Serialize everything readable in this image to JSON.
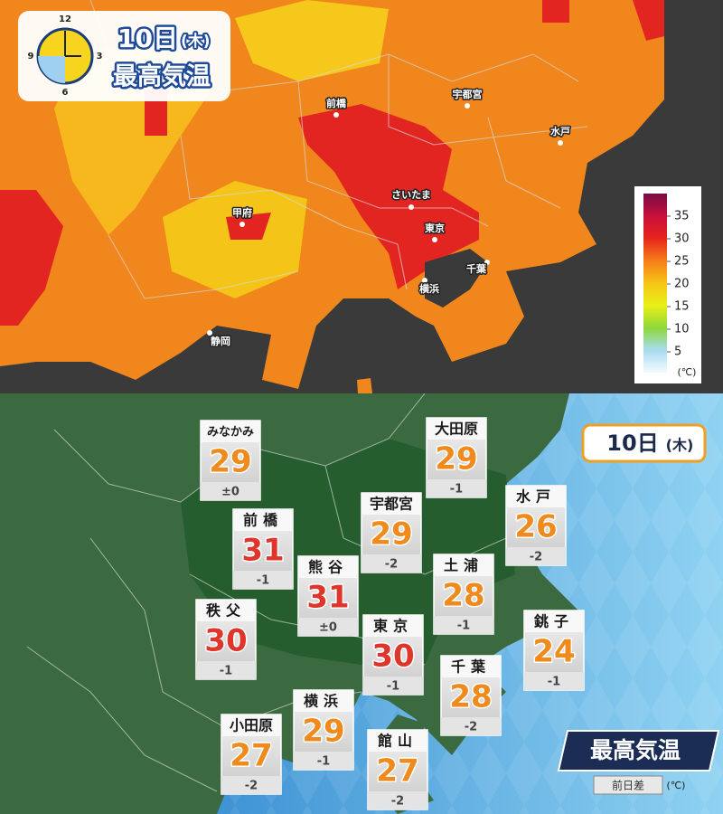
{
  "top_map": {
    "badge": {
      "day": "10日",
      "weekday": "(木)",
      "title": "最高気温"
    },
    "clock_labels": [
      "12",
      "3",
      "6",
      "9"
    ],
    "cities": [
      "前橋",
      "宇都宮",
      "水戸",
      "さいたま",
      "甲府",
      "東京",
      "千葉",
      "横浜",
      "静岡"
    ],
    "legend": {
      "ticks": [
        35,
        30,
        25,
        20,
        15,
        10,
        5
      ],
      "unit": "(℃)",
      "colors": [
        "#7a0a45",
        "#c8103a",
        "#e8241e",
        "#f57d18",
        "#f6c516",
        "#e8f018",
        "#8fd83a",
        "#a8dcf0",
        "#f4fbff"
      ]
    }
  },
  "bottom_map": {
    "day": "10日",
    "weekday": "(木)",
    "title": "最高気温",
    "note": "前日差",
    "unit": "(℃)",
    "stations": [
      {
        "name": "みなかみ",
        "temp": 29,
        "diff": "±0",
        "color": "#ef8a1c"
      },
      {
        "name": "大田原",
        "temp": 29,
        "diff": "-1",
        "color": "#ef8a1c"
      },
      {
        "name": "宇都宮",
        "temp": 29,
        "diff": "-2",
        "color": "#ef8a1c"
      },
      {
        "name": "水戸",
        "temp": 26,
        "diff": "-2",
        "color": "#ef8a1c"
      },
      {
        "name": "前橋",
        "temp": 31,
        "diff": "-1",
        "color": "#e0352a"
      },
      {
        "name": "熊谷",
        "temp": 31,
        "diff": "±0",
        "color": "#e0352a"
      },
      {
        "name": "土浦",
        "temp": 28,
        "diff": "-1",
        "color": "#ef8a1c"
      },
      {
        "name": "秩父",
        "temp": 30,
        "diff": "-1",
        "color": "#e0352a"
      },
      {
        "name": "東京",
        "temp": 30,
        "diff": "-1",
        "color": "#e0352a"
      },
      {
        "name": "銚子",
        "temp": 24,
        "diff": "-1",
        "color": "#ef8a1c"
      },
      {
        "name": "千葉",
        "temp": 28,
        "diff": "-2",
        "color": "#ef8a1c"
      },
      {
        "name": "横浜",
        "temp": 29,
        "diff": "-1",
        "color": "#ef8a1c"
      },
      {
        "name": "小田原",
        "temp": 27,
        "diff": "-2",
        "color": "#ef8a1c"
      },
      {
        "name": "館山",
        "temp": 27,
        "diff": "-2",
        "color": "#ef8a1c"
      }
    ]
  }
}
